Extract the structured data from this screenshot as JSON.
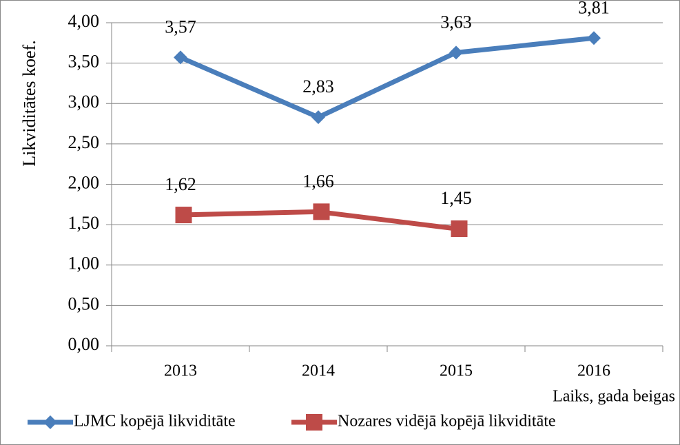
{
  "chart_data": {
    "type": "line",
    "y_label": "Likviditātes koef.",
    "x_label": "Laiks, gada beigas",
    "categories": [
      "2013",
      "2014",
      "2015",
      "2016"
    ],
    "series": [
      {
        "name": "LJMC kopējā likviditāte",
        "color": "#4a7ebb",
        "marker": "diamond",
        "values": [
          3.57,
          2.83,
          3.63,
          3.81
        ],
        "value_labels": [
          "3,57",
          "2,83",
          "3,63",
          "3,81"
        ]
      },
      {
        "name": "Nozares vidējā kopējā likviditāte",
        "color": "#be4b48",
        "marker": "square",
        "values": [
          1.62,
          1.66,
          1.45,
          null
        ],
        "value_labels": [
          "1,62",
          "1,66",
          "1,45",
          null
        ]
      }
    ],
    "ylim": [
      0,
      4
    ],
    "yticks": [
      {
        "value": 0,
        "label": "0,00"
      },
      {
        "value": 0.5,
        "label": "0,50"
      },
      {
        "value": 1,
        "label": "1,00"
      },
      {
        "value": 1.5,
        "label": "1,50"
      },
      {
        "value": 2,
        "label": "2,00"
      },
      {
        "value": 2.5,
        "label": "2,50"
      },
      {
        "value": 3,
        "label": "3,00"
      },
      {
        "value": 3.5,
        "label": "3,50"
      },
      {
        "value": 4,
        "label": "4,00"
      }
    ],
    "grid": true,
    "legend": "bottom"
  }
}
